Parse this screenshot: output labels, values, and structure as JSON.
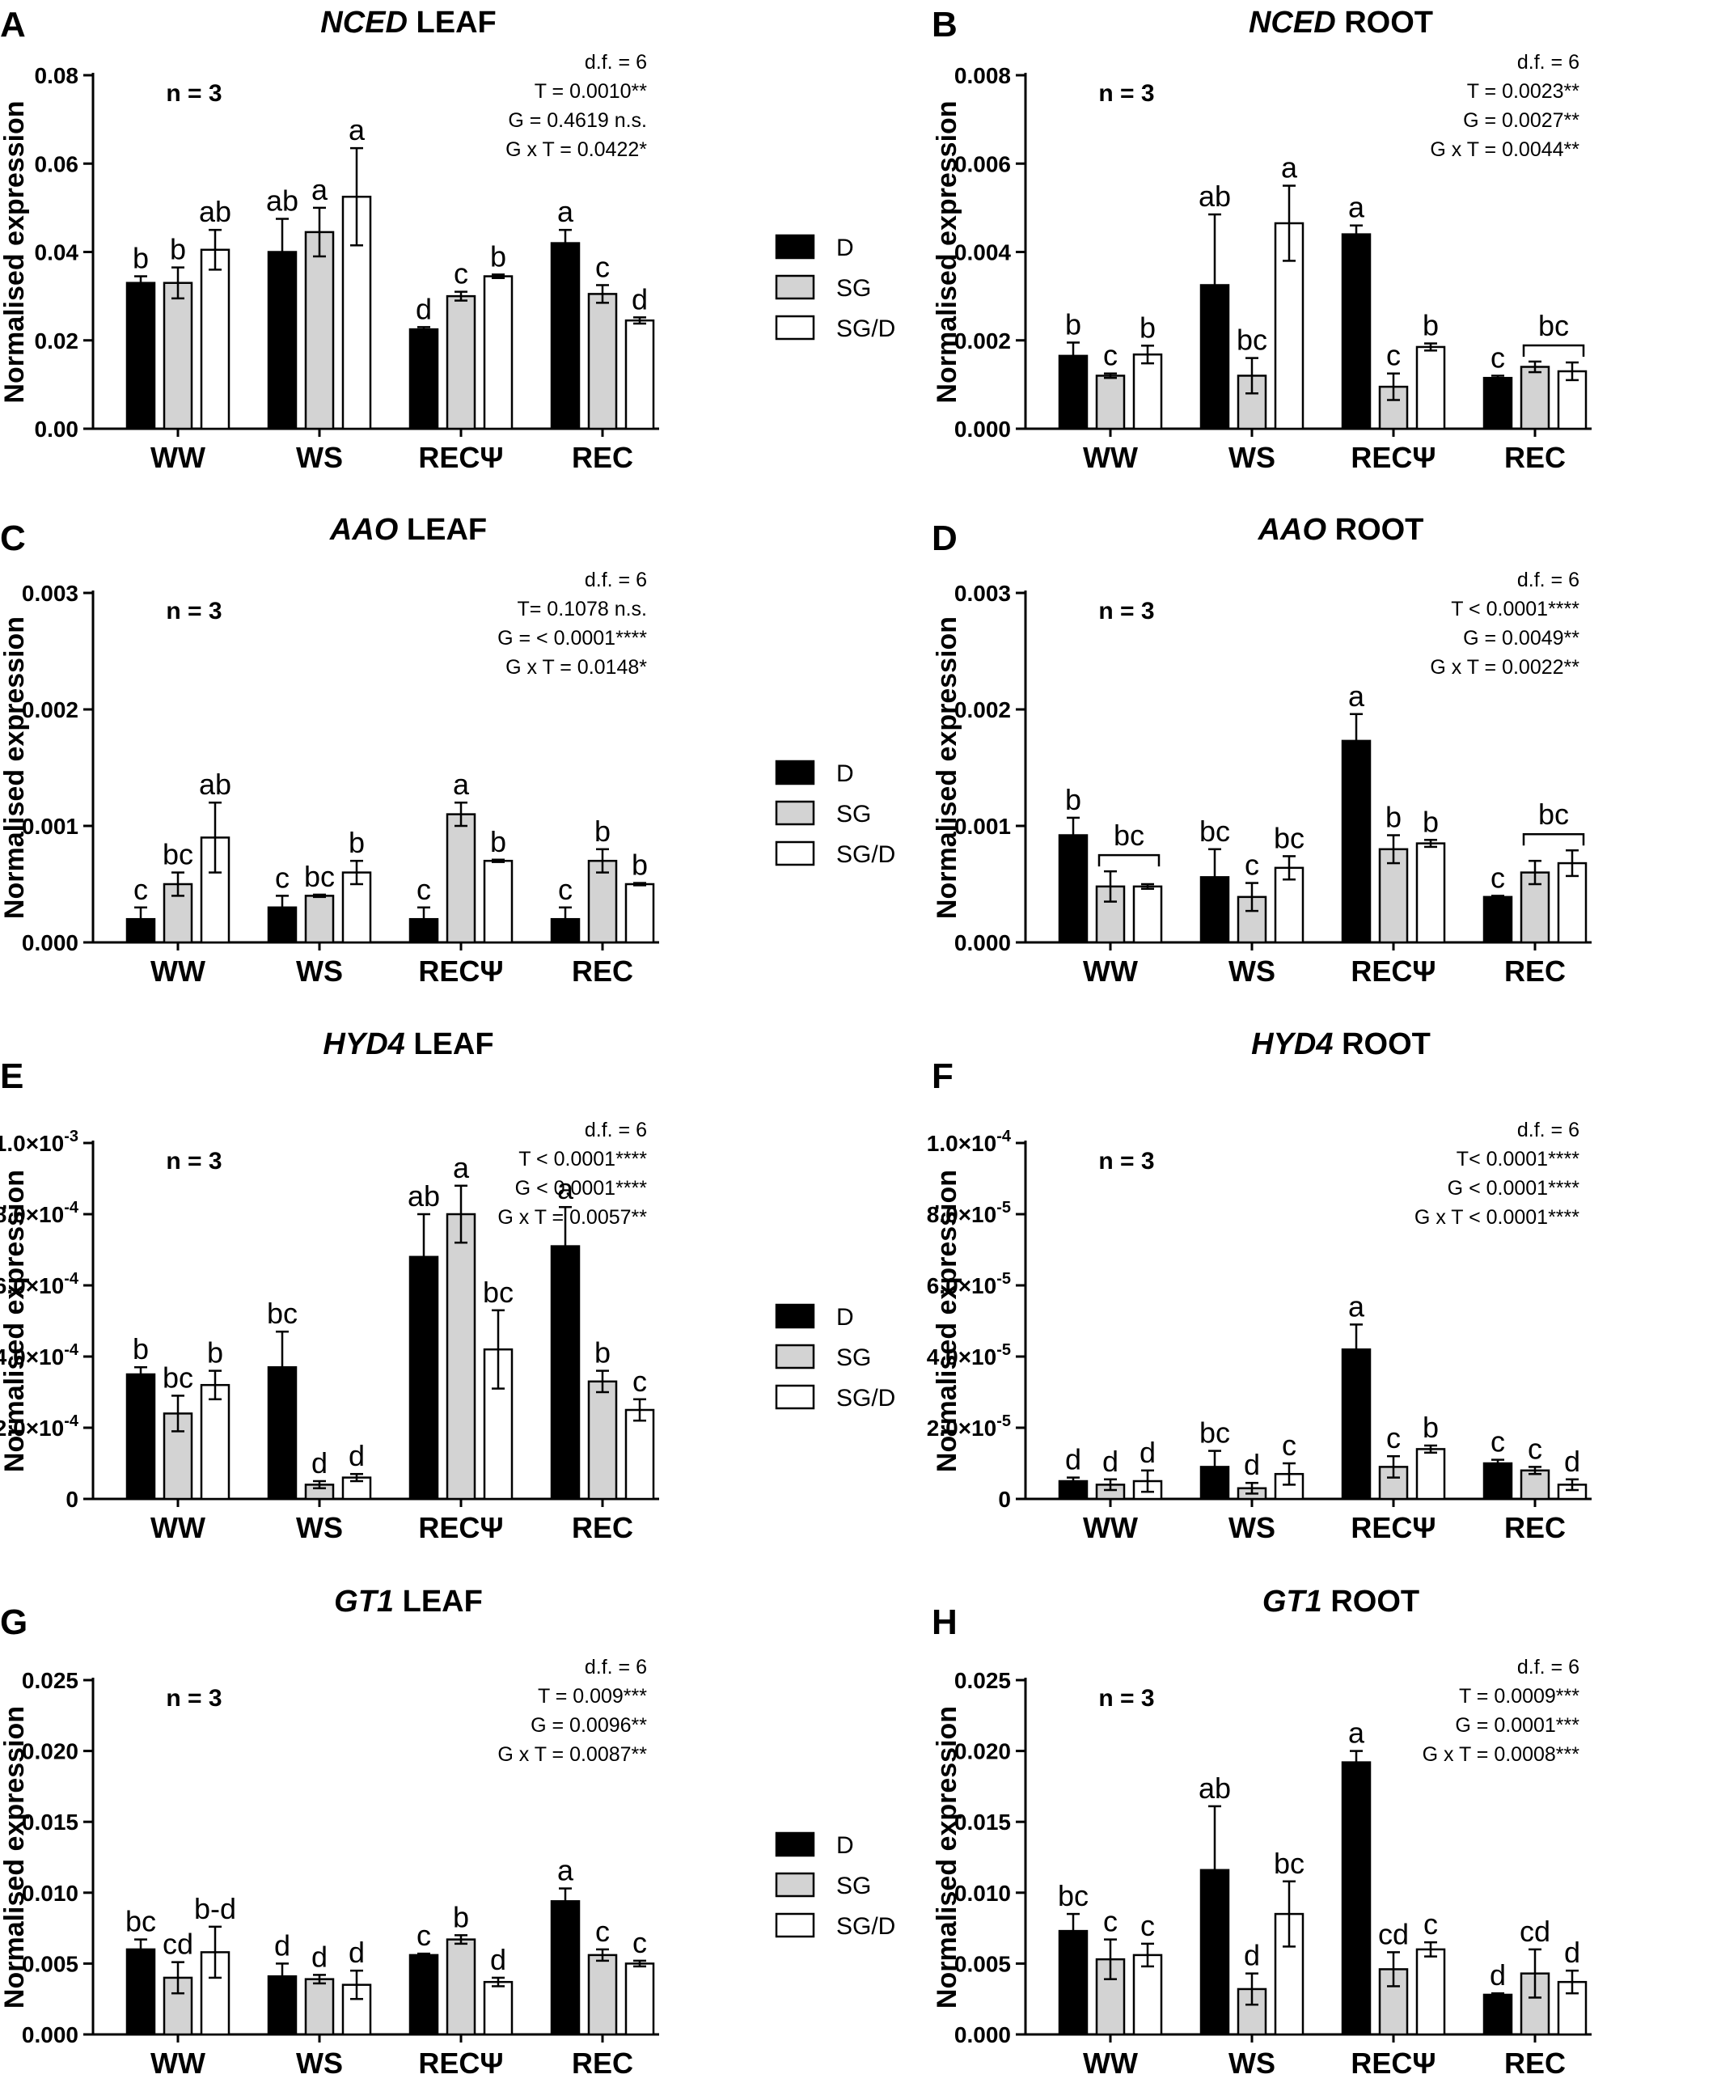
{
  "legend": [
    {
      "name": "D",
      "color": "#000000"
    },
    {
      "name": "SG",
      "color": "#d3d3d3"
    },
    {
      "name": "SG/D",
      "color": "#ffffff"
    }
  ],
  "chart_data": [
    {
      "type": "bar",
      "panel": "A",
      "title_gene": "NCED",
      "title_tissue": "LEAF",
      "ylabel": "Normalised expression",
      "ylim": [
        0,
        0.08
      ],
      "yticks": [
        0,
        0.02,
        0.04,
        0.06,
        0.08
      ],
      "ytick_labels": [
        "0.00",
        "0.02",
        "0.04",
        "0.06",
        "0.08"
      ],
      "categories": [
        "WW",
        "WS",
        "RECΨ",
        "REC"
      ],
      "n_label": "n = 3",
      "stats": [
        "d.f. = 6",
        "T = 0.0010**",
        "G = 0.4619 n.s.",
        "G x T = 0.0422*"
      ],
      "series": [
        {
          "name": "D",
          "values": [
            0.033,
            0.04,
            0.0225,
            0.042
          ],
          "errors": [
            0.0015,
            0.0075,
            0.0005,
            0.003
          ],
          "letters": [
            "b",
            "ab",
            "d",
            "a"
          ]
        },
        {
          "name": "SG",
          "values": [
            0.033,
            0.0445,
            0.03,
            0.0305
          ],
          "errors": [
            0.0035,
            0.0055,
            0.001,
            0.002
          ],
          "letters": [
            "b",
            "a",
            "c",
            "c"
          ]
        },
        {
          "name": "SG/D",
          "values": [
            0.0405,
            0.0525,
            0.0345,
            0.0245
          ],
          "errors": [
            0.0045,
            0.011,
            0.0004,
            0.0007
          ],
          "letters": [
            "ab",
            "a",
            "b",
            "d"
          ]
        }
      ],
      "brackets": []
    },
    {
      "type": "bar",
      "panel": "B",
      "title_gene": "NCED",
      "title_tissue": "ROOT",
      "ylabel": "Normalised expression",
      "ylim": [
        0,
        0.008
      ],
      "yticks": [
        0,
        0.002,
        0.004,
        0.006,
        0.008
      ],
      "ytick_labels": [
        "0.000",
        "0.002",
        "0.004",
        "0.006",
        "0.008"
      ],
      "categories": [
        "WW",
        "WS",
        "RECΨ",
        "REC"
      ],
      "n_label": "n = 3",
      "stats": [
        "d.f. = 6",
        "T = 0.0023**",
        "G = 0.0027**",
        "G x T = 0.0044**"
      ],
      "series": [
        {
          "name": "D",
          "values": [
            0.00165,
            0.00325,
            0.0044,
            0.00115
          ],
          "errors": [
            0.0003,
            0.0016,
            0.0002,
            5e-05
          ],
          "letters": [
            "b",
            "ab",
            "a",
            "c"
          ]
        },
        {
          "name": "SG",
          "values": [
            0.0012,
            0.0012,
            0.00095,
            0.0014
          ],
          "errors": [
            5e-05,
            0.0004,
            0.0003,
            0.00012
          ],
          "letters": [
            "c",
            "bc",
            "c",
            ""
          ]
        },
        {
          "name": "SG/D",
          "values": [
            0.00168,
            0.00465,
            0.00185,
            0.0013
          ],
          "errors": [
            0.0002,
            0.00085,
            8e-05,
            0.0002
          ],
          "letters": [
            "b",
            "a",
            "b",
            ""
          ]
        }
      ],
      "brackets": [
        {
          "group": 3,
          "from": 1,
          "to": 2,
          "label": "bc"
        }
      ]
    },
    {
      "type": "bar",
      "panel": "C",
      "title_gene": "AAO",
      "title_tissue": "LEAF",
      "ylabel": "Normalised expression",
      "ylim": [
        0,
        0.003
      ],
      "yticks": [
        0,
        0.001,
        0.002,
        0.003
      ],
      "ytick_labels": [
        "0.000",
        "0.001",
        "0.002",
        "0.003"
      ],
      "categories": [
        "WW",
        "WS",
        "RECΨ",
        "REC"
      ],
      "n_label": "n = 3",
      "stats": [
        "d.f. = 6",
        "T= 0.1078 n.s.",
        "G = < 0.0001****",
        "G x T = 0.0148*"
      ],
      "series": [
        {
          "name": "D",
          "values": [
            0.0002,
            0.0003,
            0.0002,
            0.0002
          ],
          "errors": [
            0.0001,
            0.0001,
            0.0001,
            0.0001
          ],
          "letters": [
            "c",
            "c",
            "c",
            "c"
          ]
        },
        {
          "name": "SG",
          "values": [
            0.0005,
            0.0004,
            0.0011,
            0.0007
          ],
          "errors": [
            0.0001,
            1e-05,
            0.0001,
            0.0001
          ],
          "letters": [
            "bc",
            "bc",
            "a",
            "b"
          ]
        },
        {
          "name": "SG/D",
          "values": [
            0.0009,
            0.0006,
            0.0007,
            0.0005
          ],
          "errors": [
            0.0003,
            0.0001,
            1e-05,
            1e-05
          ],
          "letters": [
            "ab",
            "b",
            "b",
            "b"
          ]
        }
      ],
      "brackets": []
    },
    {
      "type": "bar",
      "panel": "D",
      "title_gene": "AAO",
      "title_tissue": "ROOT",
      "ylabel": "Normalised expression",
      "ylim": [
        0,
        0.003
      ],
      "yticks": [
        0,
        0.001,
        0.002,
        0.003
      ],
      "ytick_labels": [
        "0.000",
        "0.001",
        "0.002",
        "0.003"
      ],
      "categories": [
        "WW",
        "WS",
        "RECΨ",
        "REC"
      ],
      "n_label": "n = 3",
      "stats": [
        "d.f. = 6",
        "T < 0.0001****",
        "G = 0.0049**",
        "G x T = 0.0022**"
      ],
      "series": [
        {
          "name": "D",
          "values": [
            0.00092,
            0.00056,
            0.00173,
            0.00039
          ],
          "errors": [
            0.00015,
            0.00024,
            0.00023,
            1e-05
          ],
          "letters": [
            "b",
            "bc",
            "a",
            "c"
          ]
        },
        {
          "name": "SG",
          "values": [
            0.00048,
            0.00039,
            0.0008,
            0.0006
          ],
          "errors": [
            0.00013,
            0.00012,
            0.00012,
            0.0001
          ],
          "letters": [
            "",
            "c",
            "b",
            ""
          ]
        },
        {
          "name": "SG/D",
          "values": [
            0.00048,
            0.00064,
            0.00085,
            0.00068
          ],
          "errors": [
            2e-05,
            0.0001,
            3e-05,
            0.00011
          ],
          "letters": [
            "",
            "bc",
            "b",
            ""
          ]
        }
      ],
      "brackets": [
        {
          "group": 0,
          "from": 1,
          "to": 2,
          "label": "bc"
        },
        {
          "group": 3,
          "from": 1,
          "to": 2,
          "label": "bc"
        }
      ]
    },
    {
      "type": "bar",
      "panel": "E",
      "title_gene": "HYD4",
      "title_tissue": "LEAF",
      "ylabel": "Normalised expression",
      "ylim": [
        0,
        0.001
      ],
      "yticks": [
        0,
        0.0002,
        0.0004,
        0.0006,
        0.0008,
        0.001
      ],
      "ytick_labels": [
        {
          "m": "0",
          "e": ""
        },
        {
          "m": "2.0×10",
          "e": "-4"
        },
        {
          "m": "4.0×10",
          "e": "-4"
        },
        {
          "m": "6.0×10",
          "e": "-4"
        },
        {
          "m": "8.0×10",
          "e": "-4"
        },
        {
          "m": "1.0×10",
          "e": "-3"
        }
      ],
      "categories": [
        "WW",
        "WS",
        "RECΨ",
        "REC"
      ],
      "n_label": "n = 3",
      "stats": [
        "d.f. = 6",
        "T < 0.0001****",
        "G < 0.0001****",
        "G x T = 0.0057**"
      ],
      "series": [
        {
          "name": "D",
          "values": [
            0.00035,
            0.00037,
            0.00068,
            0.00071
          ],
          "errors": [
            2e-05,
            0.0001,
            0.00012,
            0.00011
          ],
          "letters": [
            "b",
            "bc",
            "ab",
            "a"
          ]
        },
        {
          "name": "SG",
          "values": [
            0.00024,
            4e-05,
            0.0008,
            0.00033
          ],
          "errors": [
            5e-05,
            1e-05,
            8e-05,
            3e-05
          ],
          "letters": [
            "bc",
            "d",
            "a",
            "b"
          ]
        },
        {
          "name": "SG/D",
          "values": [
            0.00032,
            6e-05,
            0.00042,
            0.00025
          ],
          "errors": [
            4e-05,
            1e-05,
            0.00011,
            3e-05
          ],
          "letters": [
            "b",
            "d",
            "bc",
            "c"
          ]
        }
      ],
      "brackets": []
    },
    {
      "type": "bar",
      "panel": "F",
      "title_gene": "HYD4",
      "title_tissue": "ROOT",
      "ylabel": "Normalised expression",
      "ylim": [
        0,
        0.0001
      ],
      "yticks": [
        0,
        2e-05,
        4e-05,
        6e-05,
        8e-05,
        0.0001
      ],
      "ytick_labels": [
        {
          "m": "0",
          "e": ""
        },
        {
          "m": "2.0×10",
          "e": "-5"
        },
        {
          "m": "4.0×10",
          "e": "-5"
        },
        {
          "m": "6.0×10",
          "e": "-5"
        },
        {
          "m": "8.0×10",
          "e": "-5"
        },
        {
          "m": "1.0×10",
          "e": "-4"
        }
      ],
      "categories": [
        "WW",
        "WS",
        "RECΨ",
        "REC"
      ],
      "n_label": "n = 3",
      "stats": [
        "d.f. = 6",
        "T< 0.0001****",
        "G < 0.0001****",
        "G x T < 0.0001****"
      ],
      "series": [
        {
          "name": "D",
          "values": [
            5e-06,
            9e-06,
            4.2e-05,
            1e-05
          ],
          "errors": [
            1e-06,
            4.5e-06,
            7e-06,
            1e-06
          ],
          "letters": [
            "d",
            "bc",
            "a",
            "c"
          ]
        },
        {
          "name": "SG",
          "values": [
            4e-06,
            3e-06,
            9e-06,
            8e-06
          ],
          "errors": [
            1.5e-06,
            1.5e-06,
            3e-06,
            1e-06
          ],
          "letters": [
            "d",
            "d",
            "c",
            "c"
          ]
        },
        {
          "name": "SG/D",
          "values": [
            5e-06,
            7e-06,
            1.4e-05,
            4e-06
          ],
          "errors": [
            3e-06,
            3e-06,
            1e-06,
            1.5e-06
          ],
          "letters": [
            "d",
            "c",
            "b",
            "d"
          ]
        }
      ],
      "brackets": []
    },
    {
      "type": "bar",
      "panel": "G",
      "title_gene": "GT1",
      "title_tissue": "LEAF",
      "ylabel": "Normalised expression",
      "ylim": [
        0,
        0.025
      ],
      "yticks": [
        0,
        0.005,
        0.01,
        0.015,
        0.02,
        0.025
      ],
      "ytick_labels": [
        "0.000",
        "0.005",
        "0.010",
        "0.015",
        "0.020",
        "0.025"
      ],
      "categories": [
        "WW",
        "WS",
        "RECΨ",
        "REC"
      ],
      "n_label": "n = 3",
      "stats": [
        "d.f. = 6",
        "T = 0.009***",
        "G = 0.0096**",
        "G x T = 0.0087**"
      ],
      "series": [
        {
          "name": "D",
          "values": [
            0.006,
            0.0041,
            0.0056,
            0.0094
          ],
          "errors": [
            0.0007,
            0.0009,
            0.0001,
            0.0009
          ],
          "letters": [
            "bc",
            "d",
            "c",
            "a"
          ]
        },
        {
          "name": "SG",
          "values": [
            0.004,
            0.0039,
            0.0067,
            0.0056
          ],
          "errors": [
            0.0011,
            0.0003,
            0.0003,
            0.0004
          ],
          "letters": [
            "cd",
            "d",
            "b",
            "c"
          ]
        },
        {
          "name": "SG/D",
          "values": [
            0.0058,
            0.0035,
            0.0037,
            0.005
          ],
          "errors": [
            0.0018,
            0.001,
            0.0003,
            0.0002
          ],
          "letters": [
            "b-d",
            "d",
            "d",
            "c"
          ]
        }
      ],
      "brackets": []
    },
    {
      "type": "bar",
      "panel": "H",
      "title_gene": "GT1",
      "title_tissue": "ROOT",
      "ylabel": "Normalised expression",
      "ylim": [
        0,
        0.025
      ],
      "yticks": [
        0,
        0.005,
        0.01,
        0.015,
        0.02,
        0.025
      ],
      "ytick_labels": [
        "0.000",
        "0.005",
        "0.010",
        "0.015",
        "0.020",
        "0.025"
      ],
      "categories": [
        "WW",
        "WS",
        "RECΨ",
        "REC"
      ],
      "n_label": "n = 3",
      "stats": [
        "d.f. = 6",
        "T = 0.0009***",
        "G = 0.0001***",
        "G x T = 0.0008***"
      ],
      "series": [
        {
          "name": "D",
          "values": [
            0.0073,
            0.0116,
            0.0192,
            0.0028
          ],
          "errors": [
            0.0012,
            0.0045,
            0.0008,
            0.0001
          ],
          "letters": [
            "bc",
            "ab",
            "a",
            "d"
          ]
        },
        {
          "name": "SG",
          "values": [
            0.0053,
            0.0032,
            0.0046,
            0.0043
          ],
          "errors": [
            0.0014,
            0.0011,
            0.0012,
            0.0017
          ],
          "letters": [
            "c",
            "d",
            "cd",
            "cd"
          ]
        },
        {
          "name": "SG/D",
          "values": [
            0.0056,
            0.0085,
            0.006,
            0.0037
          ],
          "errors": [
            0.0008,
            0.0023,
            0.0005,
            0.0008
          ],
          "letters": [
            "c",
            "bc",
            "c",
            "d"
          ]
        }
      ],
      "brackets": []
    }
  ]
}
